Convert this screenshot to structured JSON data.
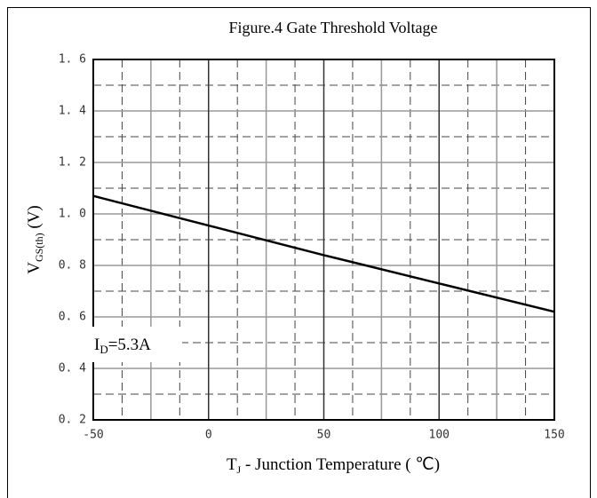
{
  "chart_data": {
    "type": "line",
    "title": "Figure.4 Gate Threshold Voltage",
    "ylabel": {
      "main": "V",
      "sub": "GS(th)",
      "rest": " (V)"
    },
    "xlabel": {
      "main": "T",
      "sub": "J",
      "rest": " - Junction Temperature (    ℃)"
    },
    "annotation": {
      "main": "I",
      "sub": "D",
      "rest": "=5.3A"
    },
    "x": [
      -50,
      0,
      50,
      100,
      150
    ],
    "series": [
      {
        "name": "VGS(th)",
        "color": "#000000",
        "values": [
          1.07,
          0.955,
          0.84,
          0.73,
          0.62
        ]
      }
    ],
    "xlim": [
      -50,
      150
    ],
    "xticks": [
      -50,
      0,
      50,
      100,
      150
    ],
    "ylim": [
      0.2,
      1.6
    ],
    "yticks": [
      {
        "value": 0.2,
        "label": "0. 2"
      },
      {
        "value": 0.4,
        "label": "0. 4"
      },
      {
        "value": 0.6,
        "label": "0. 6"
      },
      {
        "value": 0.8,
        "label": "0. 8"
      },
      {
        "value": 1.0,
        "label": "1. 0"
      },
      {
        "value": 1.2,
        "label": "1. 2"
      },
      {
        "value": 1.4,
        "label": "1. 4"
      },
      {
        "value": 1.6,
        "label": "1. 6"
      }
    ],
    "grid": true
  }
}
